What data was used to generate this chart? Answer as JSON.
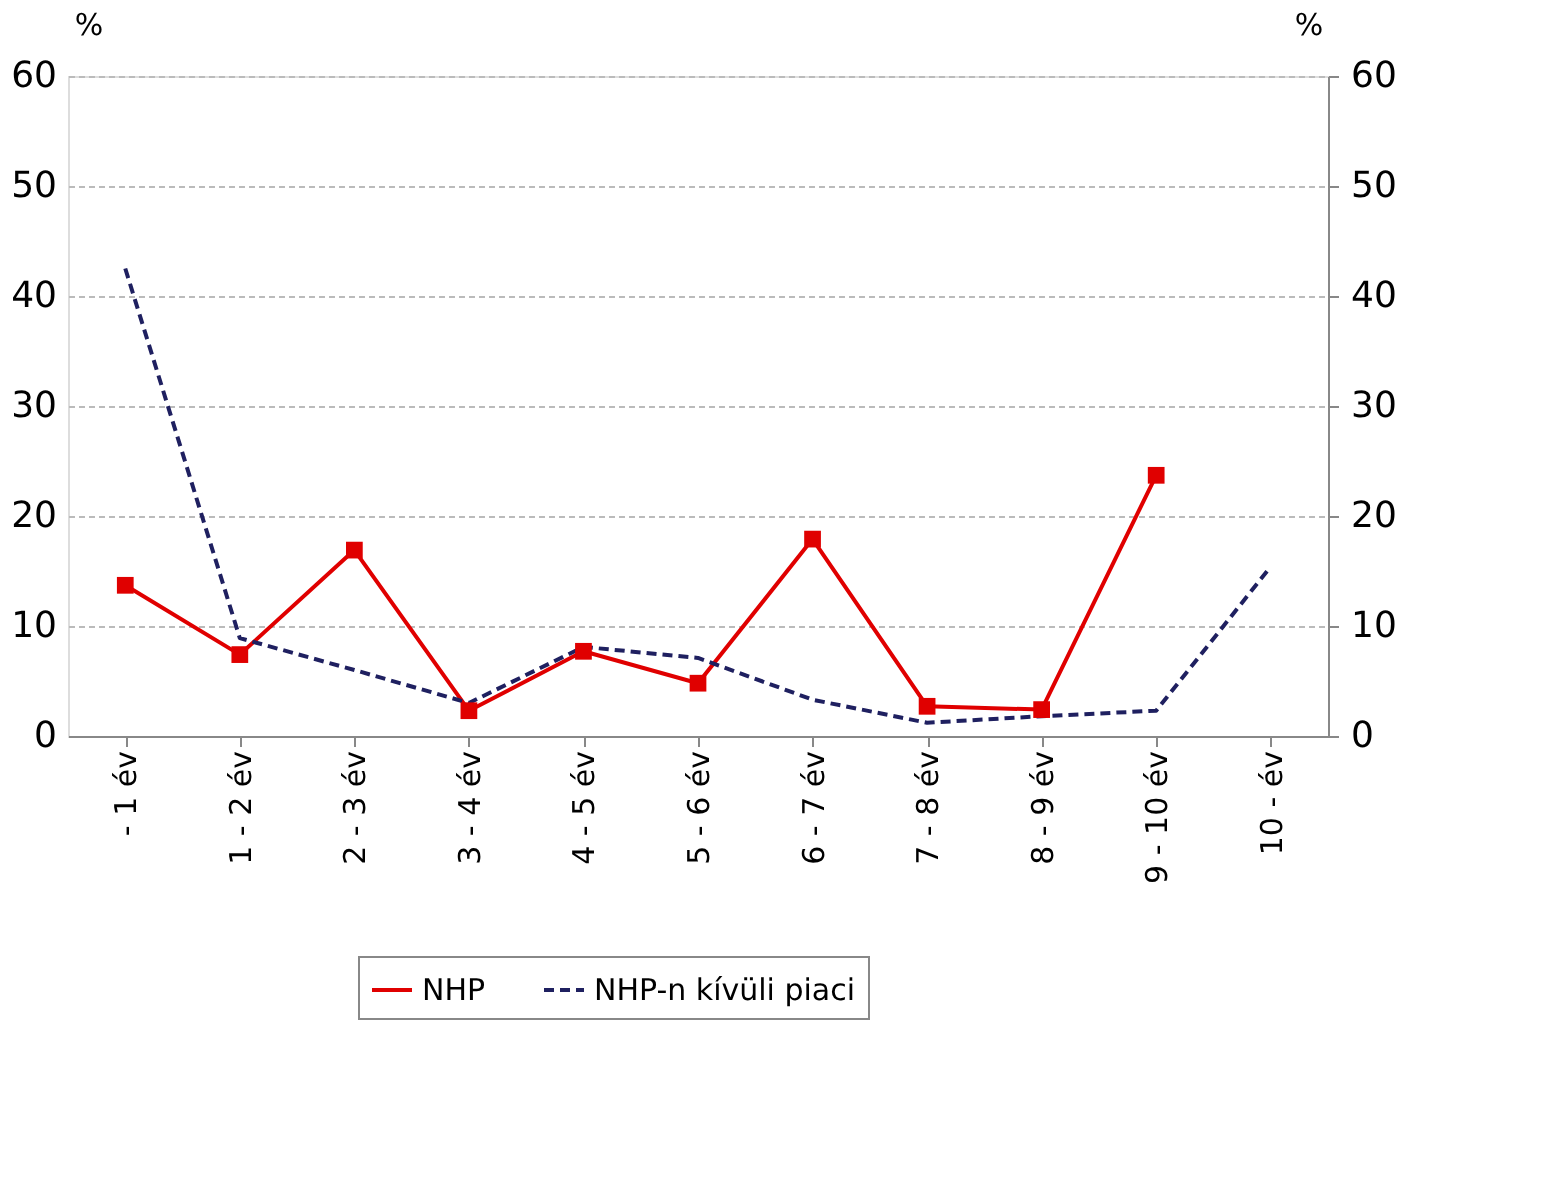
{
  "chart_data": {
    "type": "line",
    "categories": [
      "- 1 év",
      "1 - 2 év",
      "2 - 3 év",
      "3 - 4 év",
      "4 - 5 év",
      "5 - 6 év",
      "6 - 7 év",
      "7 - 8 év",
      "8 - 9 év",
      "9 - 10 év",
      "10 - év"
    ],
    "series": [
      {
        "name": "NHP",
        "color": "#e00000",
        "marker": "square",
        "line_style": "solid",
        "values": [
          13.7,
          7.4,
          16.9,
          2.3,
          7.7,
          4.8,
          17.9,
          2.7,
          2.4,
          23.7,
          null
        ]
      },
      {
        "name": "NHP-n kívüli piaci",
        "color": "#1f2060",
        "marker": "none",
        "line_style": "dashed",
        "values": [
          42.5,
          8.9,
          6.0,
          3.0,
          8.1,
          7.1,
          3.3,
          1.2,
          1.8,
          2.3,
          15.4
        ]
      }
    ],
    "ylabel": "%",
    "y2label": "%",
    "ylim": [
      0,
      60
    ],
    "yticks": [
      0,
      10,
      20,
      30,
      40,
      50,
      60
    ],
    "y2lim": [
      0,
      60
    ],
    "y2ticks": [
      0,
      10,
      20,
      30,
      40,
      50,
      60
    ],
    "grid": "y",
    "legend": "bottom"
  }
}
